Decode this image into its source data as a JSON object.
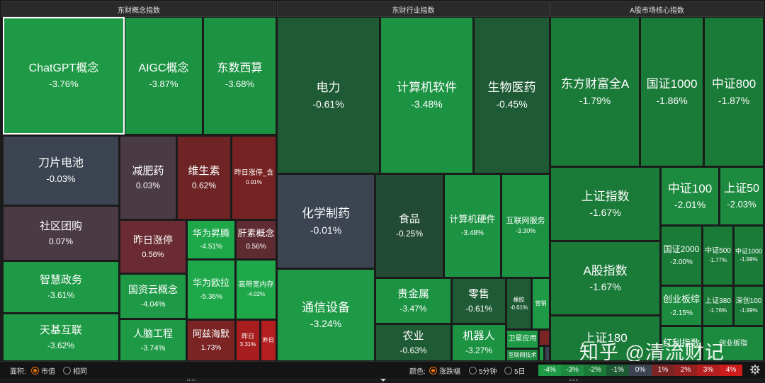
{
  "panels": [
    {
      "title": "东财概念指数"
    },
    {
      "title": "东财行业指数"
    },
    {
      "title": "A股市场核心指数"
    }
  ],
  "tiles": [
    {
      "name": "ChatGPT概念",
      "pct": "-3.76%",
      "selected": true
    },
    {
      "name": "AIGC概念",
      "pct": "-3.87%"
    },
    {
      "name": "东数西算",
      "pct": "-3.68%"
    },
    {
      "name": "刀片电池",
      "pct": "-0.03%"
    },
    {
      "name": "减肥药",
      "pct": "0.03%"
    },
    {
      "name": "维生素",
      "pct": "0.62%"
    },
    {
      "name": "昨日涨停_含",
      "pct": "0.91%"
    },
    {
      "name": "社区团购",
      "pct": "0.07%"
    },
    {
      "name": "昨日涨停",
      "pct": "0.56%"
    },
    {
      "name": "华为昇腾",
      "pct": "-4.51%"
    },
    {
      "name": "肝素概念",
      "pct": "0.56%"
    },
    {
      "name": "智慧政务",
      "pct": "-3.61%"
    },
    {
      "name": "国资云概念",
      "pct": "-4.04%"
    },
    {
      "name": "华为欧拉",
      "pct": "-5.36%"
    },
    {
      "name": "高带宽内存",
      "pct": "-4.02%"
    },
    {
      "name": "天基互联",
      "pct": "-3.62%"
    },
    {
      "name": "人脑工程",
      "pct": "-3.74%"
    },
    {
      "name": "阿兹海默",
      "pct": "1.73%"
    },
    {
      "name": "昨日",
      "pct": "3.31%"
    },
    {
      "name": "昨日",
      "pct": ""
    },
    {
      "name": "电力",
      "pct": "-0.61%"
    },
    {
      "name": "计算机软件",
      "pct": "-3.48%"
    },
    {
      "name": "生物医药",
      "pct": "-0.45%"
    },
    {
      "name": "化学制药",
      "pct": "-0.01%"
    },
    {
      "name": "食品",
      "pct": "-0.25%"
    },
    {
      "name": "计算机硬件",
      "pct": "-3.48%"
    },
    {
      "name": "互联网服务",
      "pct": "-3.30%"
    },
    {
      "name": "通信设备",
      "pct": "-3.24%"
    },
    {
      "name": "贵金属",
      "pct": "-3.47%"
    },
    {
      "name": "零售",
      "pct": "-0.61%"
    },
    {
      "name": "橡胶",
      "pct": "-0.61%"
    },
    {
      "name": "营销",
      "pct": ""
    },
    {
      "name": "农业",
      "pct": "-0.63%"
    },
    {
      "name": "机器人",
      "pct": "-3.27%"
    },
    {
      "name": "卫星应用",
      "pct": ""
    },
    {
      "name": "互联网技术",
      "pct": ""
    },
    {
      "name": "",
      "pct": ""
    },
    {
      "name": "",
      "pct": ""
    },
    {
      "name": "",
      "pct": ""
    },
    {
      "name": "东方财富全A",
      "pct": "-1.79%"
    },
    {
      "name": "国证1000",
      "pct": "-1.86%"
    },
    {
      "name": "中证800",
      "pct": "-1.87%"
    },
    {
      "name": "上证指数",
      "pct": "-1.67%"
    },
    {
      "name": "中证100",
      "pct": "-2.01%"
    },
    {
      "name": "上证50",
      "pct": "-2.03%"
    },
    {
      "name": "国证2000",
      "pct": "-2.00%"
    },
    {
      "name": "中证500",
      "pct": "-1.77%"
    },
    {
      "name": "中证1000",
      "pct": "-1.99%"
    },
    {
      "name": "A股指数",
      "pct": "-1.67%"
    },
    {
      "name": "创业板综",
      "pct": "-2.15%"
    },
    {
      "name": "上证380",
      "pct": "-1.76%"
    },
    {
      "name": "深创100",
      "pct": "-1.99%"
    },
    {
      "name": "上证180",
      "pct": ""
    },
    {
      "name": "红利指数",
      "pct": ""
    },
    {
      "name": "创业板指",
      "pct": ""
    }
  ],
  "watermark": "知乎 @清流财记",
  "footer": {
    "area_label": "面积:",
    "area_options": [
      {
        "label": "市值",
        "on": true
      },
      {
        "label": "相同",
        "on": false
      }
    ],
    "color_label": "颜色:",
    "color_options": [
      {
        "label": "涨跌幅",
        "on": true
      },
      {
        "label": "5分钟",
        "on": false
      },
      {
        "label": "5日",
        "on": false
      }
    ],
    "legend": [
      {
        "label": "-4%",
        "color": "#1e9a46"
      },
      {
        "label": "-3%",
        "color": "#1c8a3f"
      },
      {
        "label": "-2%",
        "color": "#1a7a38"
      },
      {
        "label": "-1%",
        "color": "#1e5a33"
      },
      {
        "label": "0%",
        "color": "#3c4451"
      },
      {
        "label": "1%",
        "color": "#7a2424"
      },
      {
        "label": "2%",
        "color": "#962020"
      },
      {
        "label": "3%",
        "color": "#b51e1e"
      },
      {
        "label": "4%",
        "color": "#cc1c1c"
      }
    ]
  },
  "icons": {
    "settings": "gear-icon",
    "expand": "chevron-down-icon",
    "resize": "grip-icon"
  }
}
